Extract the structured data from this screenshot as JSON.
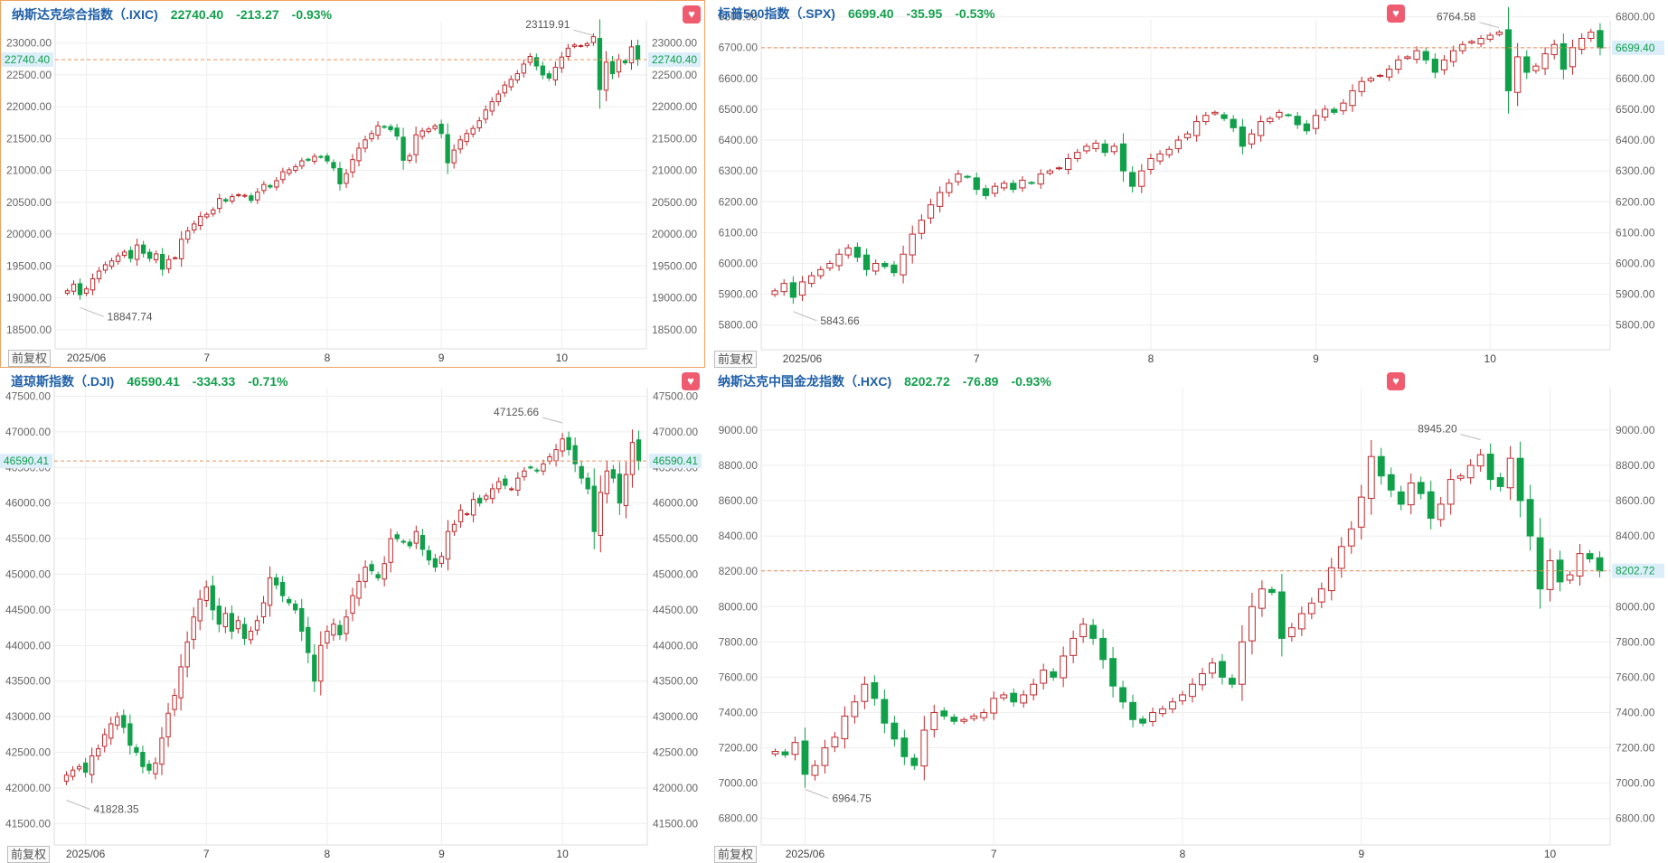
{
  "adjust_label": "前复权",
  "colors": {
    "up": "#c0282c",
    "down": "#10a04a",
    "name": "#1f5fa8",
    "price_line": "#e8905a",
    "grid": "#eeeeee",
    "tag_bg": "#dbeef9",
    "tag_text": "#12a04c",
    "fav": "#ef5b6f"
  },
  "icons": {
    "favorite": "heart-icon"
  },
  "panels": [
    {
      "name": "纳斯达克综合指数（.IXIC)",
      "price": "22740.40",
      "change": "-213.27",
      "pct": "-0.93%",
      "high_label": "23119.91",
      "low_label": "18847.74",
      "price_tag": "22740.40"
    },
    {
      "name": "标普500指数（.SPX)",
      "price": "6699.40",
      "change": "-35.95",
      "pct": "-0.53%",
      "high_label": "6764.58",
      "low_label": "5843.66",
      "price_tag": "6699.40"
    },
    {
      "name": "道琼斯指数（.DJI)",
      "price": "46590.41",
      "change": "-334.33",
      "pct": "-0.71%",
      "high_label": "47125.66",
      "low_label": "41828.35",
      "price_tag": "46590.41"
    },
    {
      "name": "纳斯达克中国金龙指数（.HXC)",
      "price": "8202.72",
      "change": "-76.89",
      "pct": "-0.93%",
      "high_label": "8945.20",
      "low_label": "6964.75",
      "price_tag": "8202.72"
    }
  ],
  "chart_data": [
    {
      "type": "candlestick",
      "title": "纳斯达克综合指数（.IXIC)",
      "ylim": [
        18200,
        23350
      ],
      "yticks": [
        "18500.00",
        "19000.00",
        "19500.00",
        "20000.00",
        "20500.00",
        "21000.00",
        "21500.00",
        "22000.00",
        "22500.00",
        "23000.00"
      ],
      "xticks": [
        "2025/06",
        "7",
        "8",
        "9",
        "10"
      ],
      "x_tick_index": [
        3,
        22,
        41,
        59,
        78
      ],
      "current": 22740.4,
      "high": 23119.91,
      "low": 18847.74,
      "closes": [
        19112,
        19215,
        19050,
        19140,
        19300,
        19420,
        19520,
        19580,
        19660,
        19720,
        19620,
        19830,
        19700,
        19620,
        19690,
        19450,
        19600,
        19630,
        19920,
        20050,
        20160,
        20280,
        20310,
        20380,
        20560,
        20520,
        20590,
        20620,
        20610,
        20530,
        20660,
        20780,
        20740,
        20840,
        20980,
        21010,
        21060,
        21150,
        21160,
        21220,
        21210,
        21150,
        21040,
        20790,
        20950,
        21170,
        21350,
        21480,
        21580,
        21700,
        21680,
        21640,
        21540,
        21160,
        21230,
        21560,
        21620,
        21650,
        21700,
        21580,
        21120,
        21320,
        21480,
        21580,
        21660,
        21780,
        21950,
        22080,
        22200,
        22340,
        22430,
        22520,
        22670,
        22790,
        22640,
        22500,
        22450,
        22620,
        22780,
        22920,
        22970,
        22960,
        22990,
        23100,
        22270,
        22700,
        22520,
        22740,
        22690,
        22940,
        22740
      ]
    },
    {
      "type": "candlestick",
      "title": "标普500指数（.SPX)",
      "ylim": [
        5720,
        6790
      ],
      "yticks": [
        "5800.00",
        "5900.00",
        "6000.00",
        "6100.00",
        "6200.00",
        "6300.00",
        "6400.00",
        "6500.00",
        "6600.00",
        "6700.00",
        "6800.00"
      ],
      "xticks": [
        "2025/06",
        "7",
        "8",
        "9",
        "10"
      ],
      "x_tick_index": [
        3,
        22,
        41,
        59,
        78
      ],
      "current": 6699.4,
      "high": 6764.58,
      "low": 5843.66,
      "closes": [
        5911,
        5935,
        5890,
        5940,
        5960,
        5980,
        6000,
        6030,
        6050,
        6020,
        5980,
        6000,
        5990,
        5970,
        6030,
        6095,
        6140,
        6190,
        6230,
        6260,
        6290,
        6280,
        6240,
        6220,
        6250,
        6260,
        6240,
        6270,
        6260,
        6290,
        6300,
        6310,
        6340,
        6360,
        6380,
        6390,
        6360,
        6380,
        6300,
        6250,
        6300,
        6340,
        6355,
        6370,
        6400,
        6420,
        6460,
        6480,
        6490,
        6470,
        6440,
        6380,
        6420,
        6460,
        6470,
        6490,
        6480,
        6450,
        6430,
        6480,
        6500,
        6490,
        6520,
        6560,
        6590,
        6600,
        6610,
        6630,
        6660,
        6670,
        6690,
        6660,
        6620,
        6660,
        6690,
        6710,
        6720,
        6730,
        6740,
        6750,
        6560,
        6670,
        6620,
        6640,
        6680,
        6710,
        6630,
        6700,
        6730,
        6750,
        6699
      ]
    },
    {
      "type": "candlestick",
      "title": "道琼斯指数（.DJI)",
      "ylim": [
        41200,
        47620
      ],
      "yticks": [
        "41500.00",
        "42000.00",
        "42500.00",
        "43000.00",
        "43500.00",
        "44000.00",
        "44500.00",
        "45000.00",
        "45500.00",
        "46000.00",
        "46500.00",
        "47000.00",
        "47500.00"
      ],
      "xticks": [
        "2025/06",
        "7",
        "8",
        "9",
        "10"
      ],
      "x_tick_index": [
        3,
        22,
        41,
        59,
        78
      ],
      "current": 46590.41,
      "high": 47125.66,
      "low": 41828.35,
      "closes": [
        42180,
        42250,
        42300,
        42220,
        42450,
        42550,
        42750,
        42900,
        43000,
        42850,
        42600,
        42500,
        42300,
        42250,
        42350,
        42700,
        43050,
        43300,
        43700,
        44050,
        44400,
        44650,
        44820,
        44500,
        44300,
        44450,
        44200,
        44350,
        44100,
        44200,
        44350,
        44600,
        44950,
        44850,
        44700,
        44600,
        44500,
        44200,
        43900,
        43500,
        44000,
        44200,
        44300,
        44150,
        44400,
        44700,
        44900,
        45100,
        45050,
        44950,
        45150,
        45500,
        45500,
        45450,
        45400,
        45600,
        45350,
        45200,
        45100,
        45250,
        45600,
        45700,
        45900,
        45850,
        46050,
        46000,
        46100,
        46200,
        46300,
        46250,
        46200,
        46350,
        46450,
        46500,
        46450,
        46550,
        46650,
        46750,
        46900,
        46750,
        46550,
        46350,
        46200,
        45600,
        46150,
        46450,
        46350,
        46000,
        46400,
        46850,
        46590
      ]
    },
    {
      "type": "candlestick",
      "title": "纳斯达克中国金龙指数（.HXC)",
      "ylim": [
        6650,
        9240
      ],
      "yticks": [
        "6800.00",
        "7000.00",
        "7200.00",
        "7400.00",
        "7600.00",
        "7800.00",
        "8000.00",
        "8200.00",
        "8400.00",
        "8600.00",
        "8800.00",
        "9000.00"
      ],
      "xticks": [
        "2025/06",
        "7",
        "8",
        "9",
        "10"
      ],
      "x_tick_index": [
        3,
        22,
        41,
        59,
        78
      ],
      "current": 8202.72,
      "high": 8945.2,
      "low": 6964.75,
      "closes": [
        7180,
        7160,
        7230,
        7050,
        7100,
        7200,
        7260,
        7380,
        7460,
        7560,
        7480,
        7340,
        7250,
        7150,
        7100,
        7300,
        7400,
        7380,
        7350,
        7360,
        7380,
        7400,
        7480,
        7500,
        7460,
        7500,
        7560,
        7640,
        7600,
        7720,
        7820,
        7900,
        7820,
        7700,
        7550,
        7460,
        7360,
        7340,
        7400,
        7420,
        7460,
        7500,
        7560,
        7620,
        7680,
        7600,
        7560,
        7800,
        8000,
        8100,
        8080,
        7820,
        7880,
        7960,
        8020,
        8100,
        8220,
        8340,
        8440,
        8620,
        8850,
        8740,
        8660,
        8580,
        8700,
        8640,
        8500,
        8580,
        8720,
        8740,
        8800,
        8860,
        8720,
        8680,
        8840,
        8600,
        8400,
        8100,
        8260,
        8140,
        8180,
        8300,
        8270,
        8202
      ]
    }
  ]
}
